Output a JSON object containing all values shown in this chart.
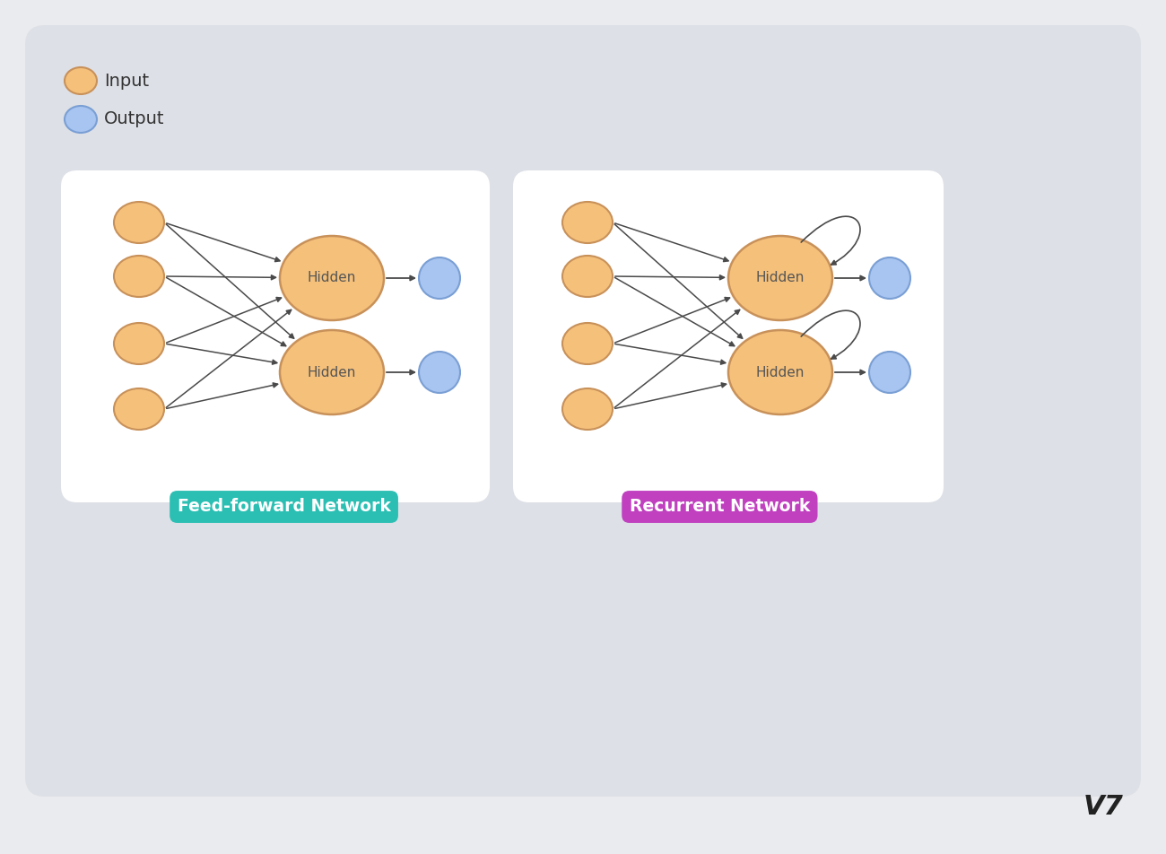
{
  "bg_color": "#e9ebee",
  "outer_panel_color": "#dde0e6",
  "panel_color": "#ffffff",
  "input_color": "#f5c07a",
  "input_edge_color": "#c8915a",
  "output_color": "#a8c4f0",
  "output_edge_color": "#7a9fd4",
  "hidden_color": "#f5c07a",
  "hidden_edge_color": "#c8915a",
  "arrow_color": "#4a4a4a",
  "text_color": "#333333",
  "ff_label": "Feed-forward Network",
  "ff_label_color": "#2bbfb3",
  "rnn_label": "Recurrent Network",
  "rnn_label_color": "#c040c0",
  "legend_input_label": "Input",
  "legend_output_label": "Output",
  "node_label_color": "#555555",
  "v7_color": "#222222"
}
